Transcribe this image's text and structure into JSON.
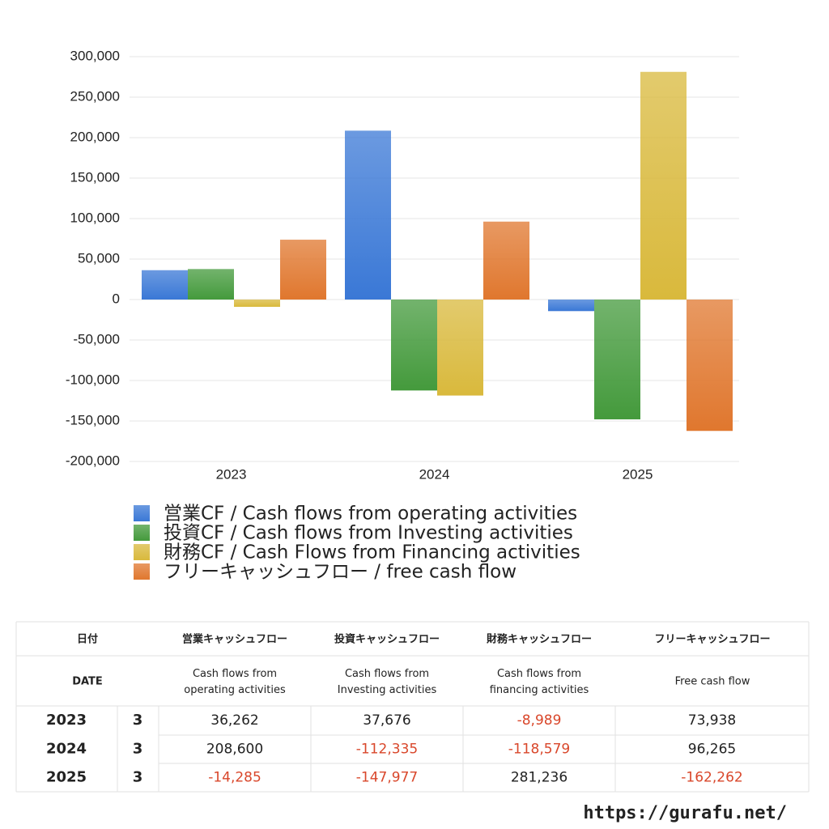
{
  "chart_data": {
    "type": "bar",
    "categories": [
      "2023",
      "2024",
      "2025"
    ],
    "series": [
      {
        "name": "営業CF / Cash flows from operating activities",
        "color": "#3a78d6",
        "values": [
          36262,
          208600,
          -14285
        ]
      },
      {
        "name": "投資CF / Cash flows from Investing activities",
        "color": "#449a3c",
        "values": [
          37676,
          -112335,
          -147977
        ]
      },
      {
        "name": "財務CF / Cash Flows from Financing activities",
        "color": "#d9b93c",
        "values": [
          -8989,
          -118579,
          281236
        ]
      },
      {
        "name": "フリーキャッシュフロー / free cash flow",
        "color": "#e0772e",
        "values": [
          73938,
          96265,
          -162262
        ]
      }
    ],
    "ylim": [
      -200000,
      300000
    ],
    "yticks": [
      {
        "value": -200000,
        "label": "-200,000"
      },
      {
        "value": -150000,
        "label": "-150,000"
      },
      {
        "value": -100000,
        "label": "-100,000"
      },
      {
        "value": -50000,
        "label": "-50,000"
      },
      0,
      {
        "value": 50000,
        "label": "50,000"
      },
      {
        "value": 100000,
        "label": "100,000"
      },
      {
        "value": 150000,
        "label": "150,000"
      },
      {
        "value": 200000,
        "label": "200,000"
      },
      {
        "value": 250000,
        "label": "250,000"
      },
      {
        "value": 300000,
        "label": "300,000"
      }
    ],
    "grid": true
  },
  "table": {
    "header": [
      "日付",
      "営業キャッシュフロー",
      "投資キャッシュフロー",
      "財務キャッシュフロー",
      "フリーキャッシュフロー"
    ],
    "subheader": [
      "DATE",
      "Cash flows from\noperating activities",
      "Cash flows from\nInvesting activities",
      "Cash flows from\nfinancing activities",
      "Free cash flow"
    ],
    "rows": [
      [
        "2023",
        "3",
        "36,262",
        "37,676",
        "-8,989",
        "73,938"
      ],
      [
        "2024",
        "3",
        "208,600",
        "-112,335",
        "-118,579",
        "96,265"
      ],
      [
        "2025",
        "3",
        "-14,285",
        "-147,977",
        "281,236",
        "-162,262"
      ]
    ]
  },
  "footer": "https://gurafu.net/"
}
